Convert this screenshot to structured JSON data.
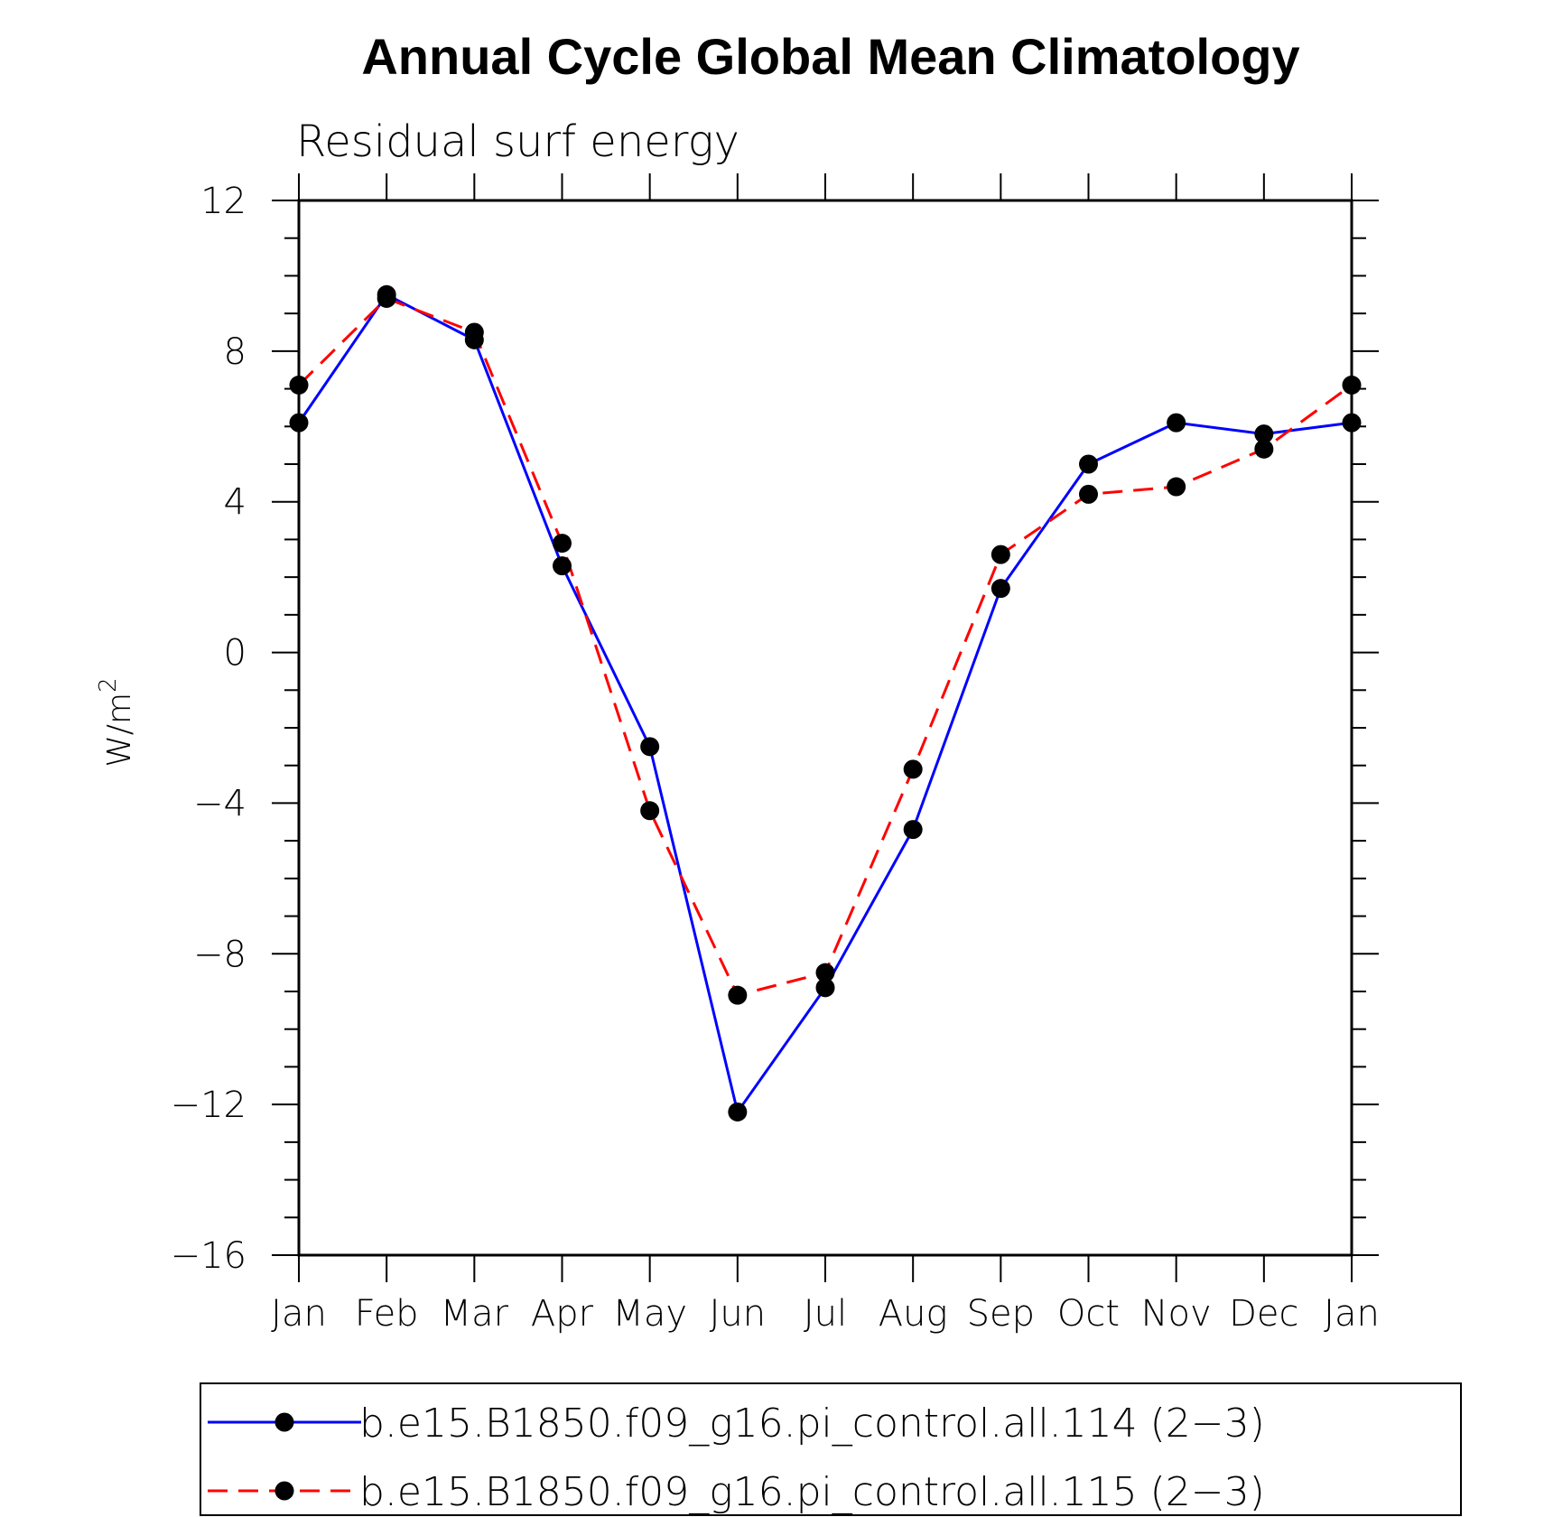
{
  "chart_data": {
    "type": "line",
    "title": "Annual Cycle Global Mean Climatology",
    "subtitle": "Residual surf energy",
    "ylabel_base": "W/m",
    "ylabel_sup": "2",
    "categories": [
      "Jan",
      "Feb",
      "Mar",
      "Apr",
      "May",
      "Jun",
      "Jul",
      "Aug",
      "Sep",
      "Oct",
      "Nov",
      "Dec",
      "Jan"
    ],
    "ylim": [
      -16,
      12
    ],
    "yticks": [
      12,
      8,
      4,
      0,
      -4,
      -8,
      -12,
      -16
    ],
    "ytick_labels": [
      "12",
      "8",
      "4",
      "0",
      "−4",
      "−8",
      "−12",
      "−16"
    ],
    "grid": false,
    "legend_position": "bottom",
    "series": [
      {
        "name": "b.e15.B1850.f09_g16.pi_control.all.114 (2−3)",
        "color": "#0000ff",
        "dash": "solid",
        "marker": "filled-circle",
        "values": [
          6.1,
          9.5,
          8.3,
          2.3,
          -2.5,
          -12.2,
          -8.9,
          -4.7,
          1.7,
          5.0,
          6.1,
          5.8,
          6.1
        ]
      },
      {
        "name": "b.e15.B1850.f09_g16.pi_control.all.115 (2−3)",
        "color": "#ff0000",
        "dash": "dashed",
        "marker": "filled-circle",
        "values": [
          7.1,
          9.4,
          8.5,
          2.9,
          -4.2,
          -9.1,
          -8.5,
          -3.1,
          2.6,
          4.2,
          4.4,
          5.4,
          7.1
        ]
      }
    ]
  }
}
